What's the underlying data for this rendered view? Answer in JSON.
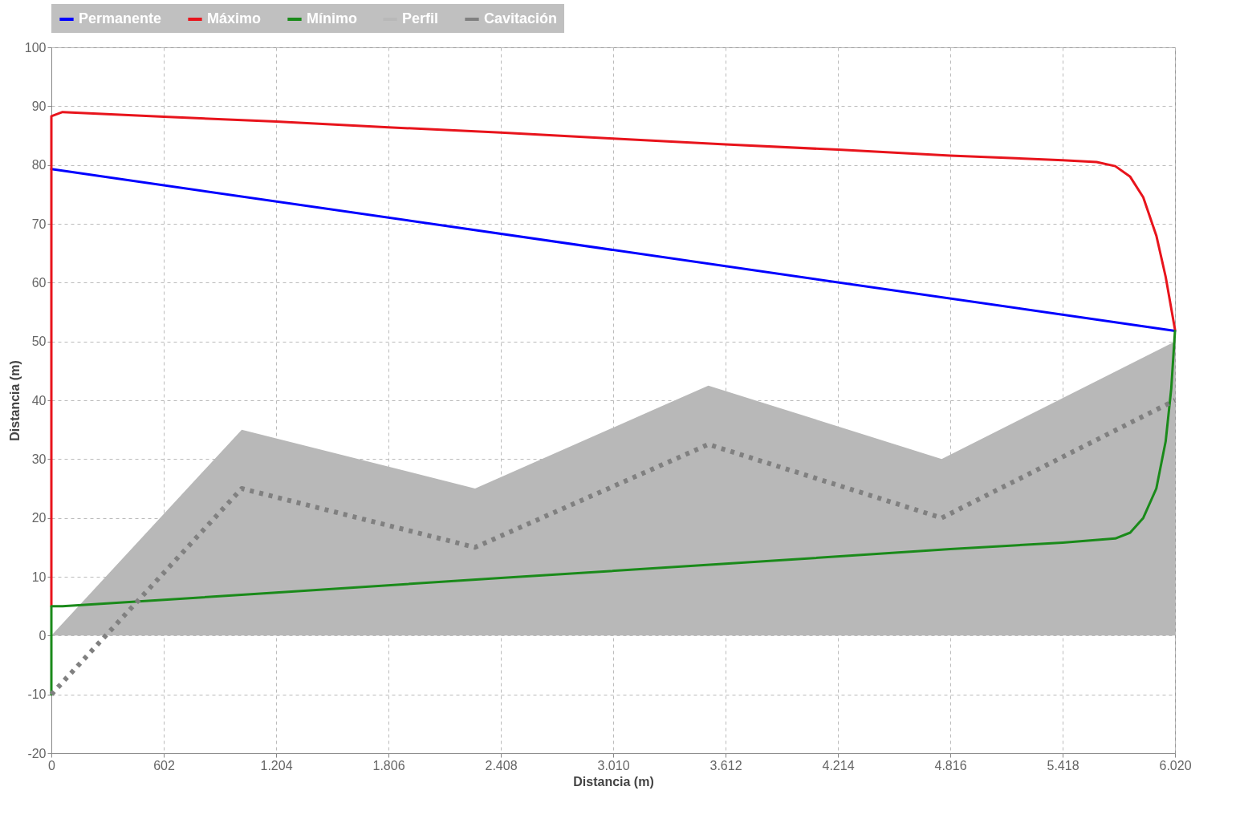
{
  "chart_data": {
    "type": "line",
    "xlabel": "Distancia (m)",
    "ylabel": "Distancia (m)",
    "xlim": [
      0,
      6020
    ],
    "xticks": [
      0,
      602,
      {
        "value": 1204,
        "label": "1.204"
      },
      {
        "value": 1806,
        "label": "1.806"
      },
      {
        "value": 2408,
        "label": "2.408"
      },
      {
        "value": 3010,
        "label": "3.010"
      },
      {
        "value": 3612,
        "label": "3.612"
      },
      {
        "value": 4214,
        "label": "4.214"
      },
      {
        "value": 4816,
        "label": "4.816"
      },
      {
        "value": 5418,
        "label": "5.418"
      },
      {
        "value": 6020,
        "label": "6.020"
      }
    ],
    "ylim": [
      -20,
      100
    ],
    "yticks": [
      -20,
      -10,
      0,
      10,
      20,
      30,
      40,
      50,
      60,
      70,
      80,
      90,
      100
    ],
    "grid": true,
    "legend": "top",
    "series": [
      {
        "name": "Permanente",
        "color": "#0000ff",
        "x": [
          0,
          6020
        ],
        "values": [
          79.3,
          51.8
        ]
      },
      {
        "name": "Máximo",
        "color": "#e8141c",
        "x": [
          0,
          0,
          60,
          602,
          1204,
          1806,
          2408,
          3010,
          3612,
          4214,
          4816,
          5418,
          5600,
          5700,
          5780,
          5850,
          5920,
          5970,
          6020
        ],
        "values": [
          5,
          88.3,
          89,
          88.2,
          87.4,
          86.4,
          85.5,
          84.5,
          83.5,
          82.6,
          81.6,
          80.8,
          80.5,
          79.8,
          78,
          74.5,
          68,
          61,
          52
        ]
      },
      {
        "name": "Mínimo",
        "color": "#1a8a1a",
        "x": [
          0,
          0,
          60,
          1204,
          2408,
          3612,
          4816,
          5418,
          5700,
          5780,
          5850,
          5920,
          5970,
          6000,
          6020
        ],
        "values": [
          -10,
          5,
          5,
          7.3,
          9.8,
          12.2,
          14.7,
          15.8,
          16.5,
          17.5,
          20,
          25,
          33,
          42,
          51.8
        ]
      },
      {
        "name": "Perfil",
        "type": "area",
        "color": "#b8b8b8",
        "x": [
          0,
          1020,
          2270,
          3520,
          4770,
          6020
        ],
        "values": [
          0,
          35,
          25,
          42.5,
          30,
          50
        ]
      },
      {
        "name": "Cavitación",
        "color": "#808080",
        "line_style": "dotted",
        "x": [
          0,
          1020,
          2270,
          3520,
          4770,
          6020
        ],
        "values": [
          -10,
          25,
          15,
          32.5,
          20,
          40
        ]
      }
    ]
  }
}
